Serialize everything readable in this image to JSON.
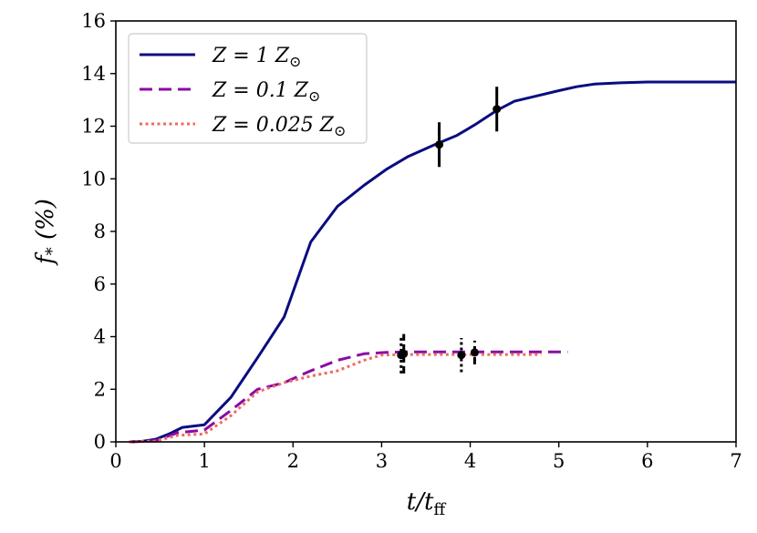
{
  "chart_data": {
    "type": "line",
    "xlabel": "t/t_ff",
    "ylabel": "f_* (%)",
    "xlabel_main": "t/t",
    "xlabel_sub": "ff",
    "ylabel_main": "f",
    "ylabel_sub": "*",
    "ylabel_tail": " (%)",
    "xlim": [
      0,
      7
    ],
    "ylim": [
      0,
      16
    ],
    "xticks": [
      0,
      1,
      2,
      3,
      4,
      5,
      6,
      7
    ],
    "yticks": [
      0,
      2,
      4,
      6,
      8,
      10,
      12,
      14,
      16
    ],
    "legend_position": "top-left",
    "series": [
      {
        "name": "Z = 1 Z☉",
        "color": "#0b0c80",
        "style": "solid",
        "x": [
          0.15,
          0.3,
          0.45,
          0.6,
          0.75,
          1.0,
          1.3,
          1.6,
          1.9,
          2.2,
          2.5,
          2.8,
          3.05,
          3.3,
          3.6,
          3.85,
          4.05,
          4.3,
          4.5,
          4.75,
          5.0,
          5.2,
          5.4,
          5.7,
          6.0,
          6.5,
          7.0
        ],
        "y": [
          0.0,
          0.02,
          0.1,
          0.3,
          0.55,
          0.65,
          1.7,
          3.2,
          4.75,
          7.6,
          8.95,
          9.75,
          10.35,
          10.85,
          11.3,
          11.65,
          12.05,
          12.6,
          12.95,
          13.15,
          13.35,
          13.5,
          13.6,
          13.65,
          13.68,
          13.68,
          13.68
        ],
        "markers": [
          {
            "x": 3.65,
            "y": 11.3,
            "yerr": 0.85
          },
          {
            "x": 4.3,
            "y": 12.65,
            "yerr": 0.85
          }
        ]
      },
      {
        "name": "Z = 0.1 Z☉",
        "color": "#8b0aa5",
        "style": "dashed",
        "x": [
          0.15,
          0.45,
          0.7,
          1.0,
          1.3,
          1.6,
          1.9,
          2.2,
          2.5,
          2.8,
          3.05,
          3.25,
          3.5,
          4.0,
          4.5,
          5.0,
          5.1
        ],
        "y": [
          0.0,
          0.05,
          0.35,
          0.45,
          1.2,
          2.0,
          2.25,
          2.7,
          3.1,
          3.35,
          3.4,
          3.42,
          3.42,
          3.42,
          3.42,
          3.42,
          3.42
        ],
        "markers": [
          {
            "x": 3.25,
            "y": 3.35,
            "yerr": 0.75
          },
          {
            "x": 4.05,
            "y": 3.4,
            "yerr": 0.45
          }
        ]
      },
      {
        "name": "Z = 0.025 Z☉",
        "color": "#f0695f",
        "style": "dotted",
        "x": [
          0.15,
          0.45,
          0.7,
          1.0,
          1.3,
          1.6,
          1.9,
          2.2,
          2.5,
          2.8,
          3.0,
          3.25,
          3.5,
          3.9,
          4.2,
          4.5,
          4.8
        ],
        "y": [
          0.0,
          0.03,
          0.25,
          0.3,
          1.0,
          1.9,
          2.25,
          2.5,
          2.7,
          3.1,
          3.3,
          3.32,
          3.32,
          3.32,
          3.32,
          3.32,
          3.32
        ],
        "markers": [
          {
            "x": 3.22,
            "y": 3.3,
            "yerr": 0.7
          },
          {
            "x": 3.9,
            "y": 3.3,
            "yerr": 0.65
          }
        ]
      }
    ],
    "legend": [
      {
        "prefix": "Z = 1 Z",
        "symbol": "⊙"
      },
      {
        "prefix": "Z = 0.1 Z",
        "symbol": "⊙"
      },
      {
        "prefix": "Z = 0.025 Z",
        "symbol": "⊙"
      }
    ]
  }
}
